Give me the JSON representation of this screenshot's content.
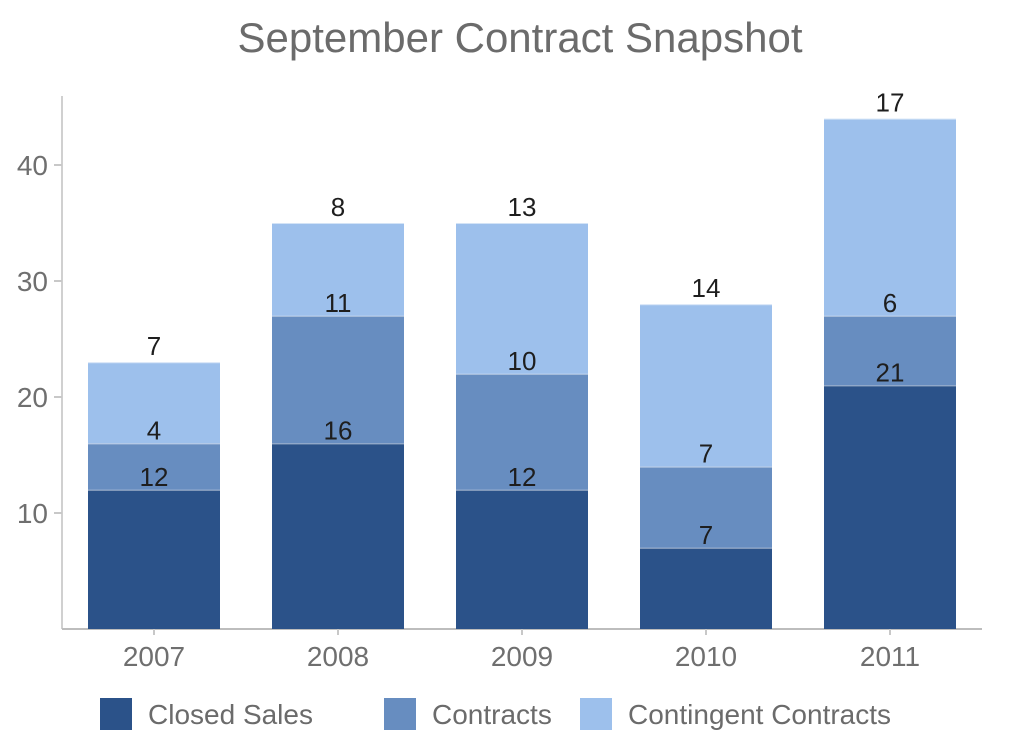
{
  "chart_data": {
    "type": "bar",
    "stacked": true,
    "title": "September Contract Snapshot",
    "xlabel": "",
    "ylabel": "",
    "categories": [
      "2007",
      "2008",
      "2009",
      "2010",
      "2011"
    ],
    "ylim": [
      0,
      45
    ],
    "yticks": [
      10,
      20,
      30,
      40
    ],
    "grid": false,
    "legend": "bottom",
    "series": [
      {
        "name": "Closed Sales",
        "values": [
          12,
          16,
          12,
          7,
          21
        ],
        "color": "#2b5289"
      },
      {
        "name": "Contracts",
        "values": [
          4,
          11,
          10,
          7,
          6
        ],
        "color": "#678dc0"
      },
      {
        "name": "Contingent Contracts",
        "values": [
          7,
          8,
          13,
          14,
          17
        ],
        "color": "#9dc0ec"
      }
    ]
  }
}
